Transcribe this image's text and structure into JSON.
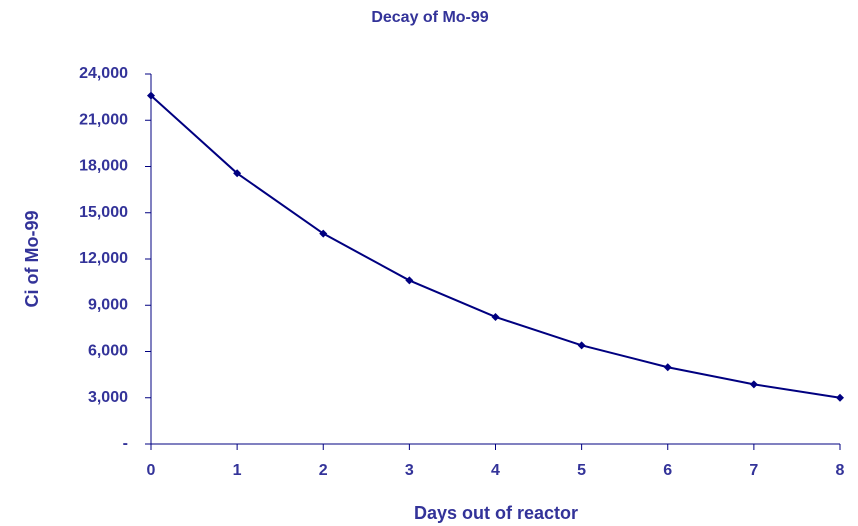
{
  "chart_data": {
    "type": "line",
    "title": "Decay of Mo-99",
    "x_label": "Days out of reactor",
    "y_label": "Ci of Mo-99",
    "x": [
      0,
      1,
      2,
      3,
      4,
      5,
      6,
      7,
      8
    ],
    "series": [
      {
        "name": "Mo-99",
        "color": "#000080",
        "values": [
          22600,
          17560,
          13650,
          10610,
          8240,
          6400,
          4980,
          3870,
          3000
        ]
      }
    ],
    "xlim": [
      0,
      8
    ],
    "xticks": [
      0,
      1,
      2,
      3,
      4,
      5,
      6,
      7,
      8
    ],
    "ylim": [
      0,
      24000
    ],
    "yticks": [
      {
        "value": 0,
        "label": "-"
      },
      {
        "value": 3000,
        "label": "3,000"
      },
      {
        "value": 6000,
        "label": "6,000"
      },
      {
        "value": 9000,
        "label": "9,000"
      },
      {
        "value": 12000,
        "label": "12,000"
      },
      {
        "value": 15000,
        "label": "15,000"
      },
      {
        "value": 18000,
        "label": "18,000"
      },
      {
        "value": 21000,
        "label": "21,000"
      },
      {
        "value": 24000,
        "label": "24,000"
      }
    ],
    "grid": false
  }
}
